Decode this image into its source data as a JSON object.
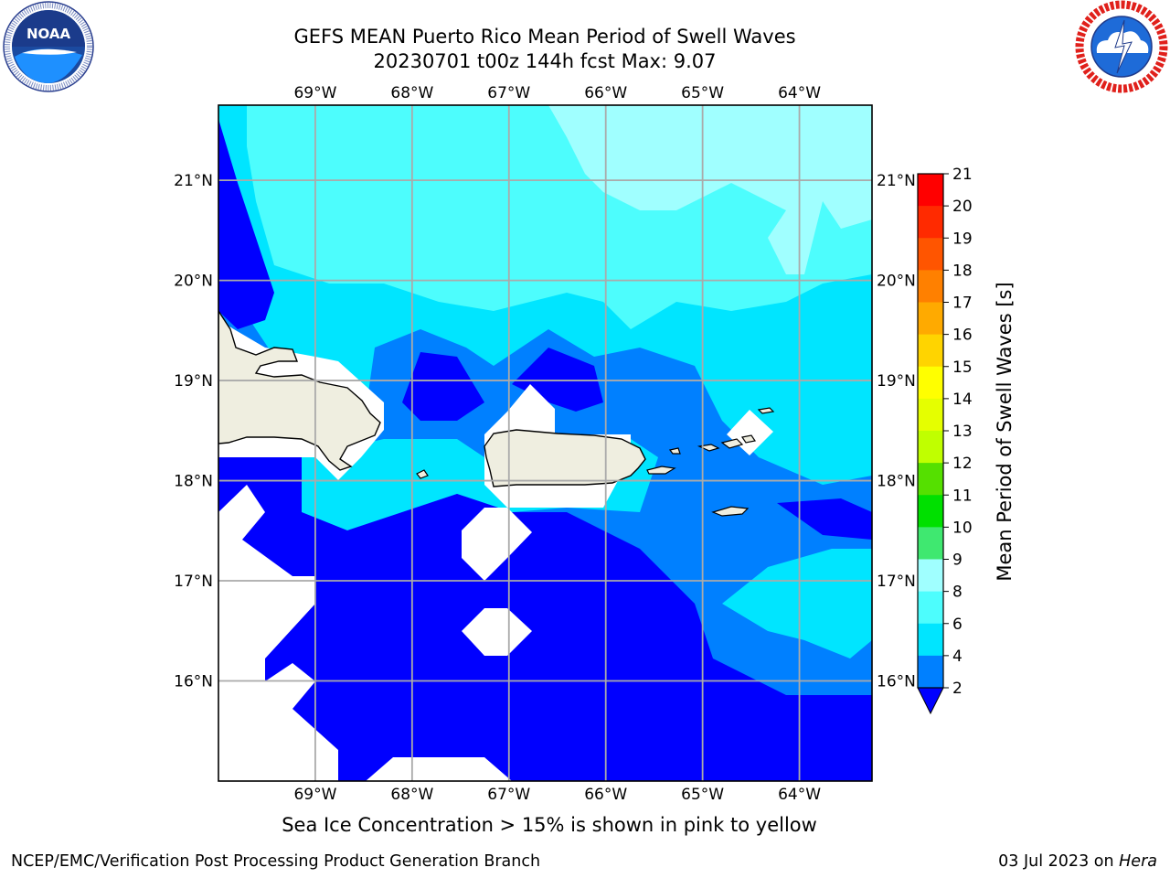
{
  "title_line1": "GEFS MEAN Puerto Rico Mean Period of Swell Waves",
  "title_line2": "20230701 t00z 144h fcst   Max: 9.07",
  "caption": "Sea Ice Concentration > 15% is shown in pink to yellow",
  "footer_left": "NCEP/EMC/Verification Post Processing Product Generation Branch",
  "footer_date": "03 Jul 2023 on",
  "footer_host": "Hera",
  "logos": {
    "left": {
      "icon": "noaa-logo-icon",
      "text": "NOAA",
      "ring_text": "NATIONAL OCEANIC AND ATMOSPHERIC ADMINISTRATION · U.S. DEPARTMENT OF COMMERCE"
    },
    "right": {
      "icon": "nws-logo-icon",
      "ring_text": "NATIONAL WEATHER SERVICE"
    }
  },
  "map": {
    "lon_range": [
      -70,
      -63.25
    ],
    "lat_range": [
      15,
      21.75
    ],
    "lon_ticks": [
      "69°W",
      "68°W",
      "67°W",
      "66°W",
      "65°W",
      "64°W"
    ],
    "lon_values": [
      -69,
      -68,
      -67,
      -66,
      -65,
      -64
    ],
    "lat_ticks": [
      "16°N",
      "17°N",
      "18°N",
      "19°N",
      "20°N",
      "21°N"
    ],
    "lat_values": [
      16,
      17,
      18,
      19,
      20,
      21
    ],
    "grid": true,
    "land_color": "#efeee0",
    "colors": {
      "band_2_4": "#0080ff",
      "band_4_6": "#00e5ff",
      "band_6_8": "#4dfdfd",
      "band_8_9": "#a0ffff",
      "below_2": "#0000ff",
      "missing": "#ffffff"
    }
  },
  "colorbar": {
    "label": "Mean Period of Swell Waves [s]",
    "ticks": [
      "21",
      "20",
      "19",
      "18",
      "17",
      "16",
      "15",
      "14",
      "13",
      "12",
      "11",
      "10",
      "9",
      "8",
      "6",
      "4",
      "2"
    ],
    "bands": [
      {
        "from": "20",
        "to": "21",
        "color": "#ff0000"
      },
      {
        "from": "19",
        "to": "20",
        "color": "#ff2a00"
      },
      {
        "from": "18",
        "to": "19",
        "color": "#ff5500"
      },
      {
        "from": "17",
        "to": "18",
        "color": "#ff8000"
      },
      {
        "from": "16",
        "to": "17",
        "color": "#ffaa00"
      },
      {
        "from": "15",
        "to": "16",
        "color": "#ffd400"
      },
      {
        "from": "14",
        "to": "15",
        "color": "#ffff00"
      },
      {
        "from": "13",
        "to": "14",
        "color": "#e5ff00"
      },
      {
        "from": "12",
        "to": "13",
        "color": "#c0ff00"
      },
      {
        "from": "11",
        "to": "12",
        "color": "#55e000"
      },
      {
        "from": "10",
        "to": "11",
        "color": "#00e000"
      },
      {
        "from": "9",
        "to": "10",
        "color": "#3fe870"
      },
      {
        "from": "8",
        "to": "9",
        "color": "#a0ffff"
      },
      {
        "from": "6",
        "to": "8",
        "color": "#4dfdfd"
      },
      {
        "from": "4",
        "to": "6",
        "color": "#00e5ff"
      },
      {
        "from": "2",
        "to": "4",
        "color": "#0080ff"
      }
    ],
    "under_color": "#0000ff"
  }
}
